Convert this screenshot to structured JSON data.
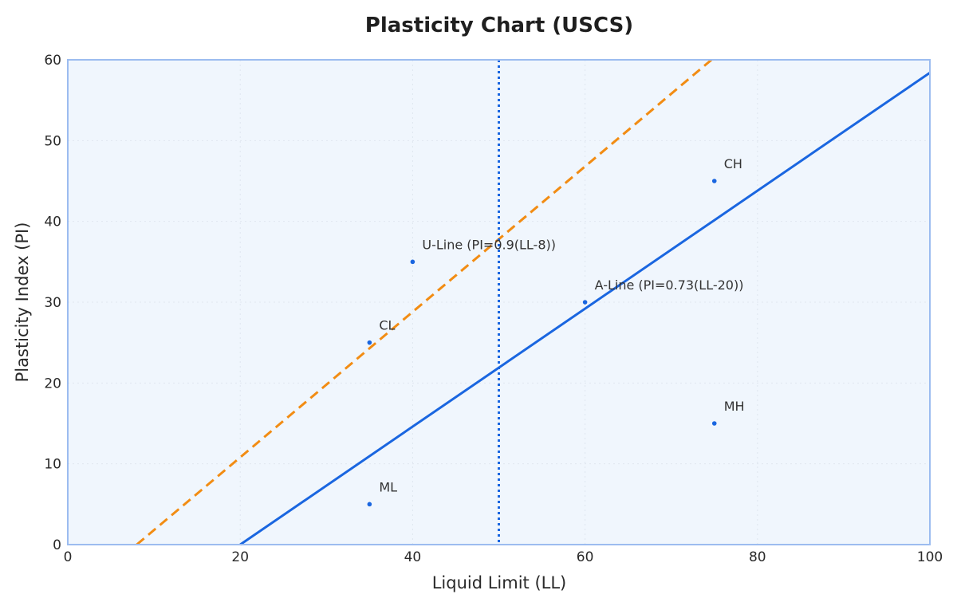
{
  "chart_data": {
    "type": "scatter",
    "title": "Plasticity Chart (USCS)",
    "xlabel": "Liquid Limit (LL)",
    "ylabel": "Plasticity Index (PI)",
    "xlim": [
      0,
      100
    ],
    "ylim": [
      0,
      60
    ],
    "x_ticks": [
      0,
      20,
      40,
      60,
      80,
      100
    ],
    "y_ticks": [
      0,
      10,
      20,
      30,
      40,
      50,
      60
    ],
    "grid": true,
    "background_color": "#f0f6fd",
    "frame_color": "#9cbcf0",
    "lines": [
      {
        "label": "A-Line (PI=0.73(LL-20))",
        "slope": 0.73,
        "x_intercept": 20,
        "style": "solid",
        "color": "#1a66e0",
        "label_x": 60,
        "label_y": 30
      },
      {
        "label": "U-Line (PI=0.9(LL-8))",
        "slope": 0.9,
        "x_intercept": 8,
        "style": "dashed",
        "color": "#f28c13",
        "label_x": 40,
        "label_y": 35
      },
      {
        "label": "",
        "vertical_x": 50,
        "style": "dotted",
        "color": "#1a66e0"
      }
    ],
    "points": [
      {
        "label": "CH",
        "x": 75,
        "y": 45
      },
      {
        "label": "CL",
        "x": 35,
        "y": 25
      },
      {
        "label": "MH",
        "x": 75,
        "y": 15
      },
      {
        "label": "ML",
        "x": 35,
        "y": 5
      }
    ],
    "point_color": "#1a66e0"
  }
}
